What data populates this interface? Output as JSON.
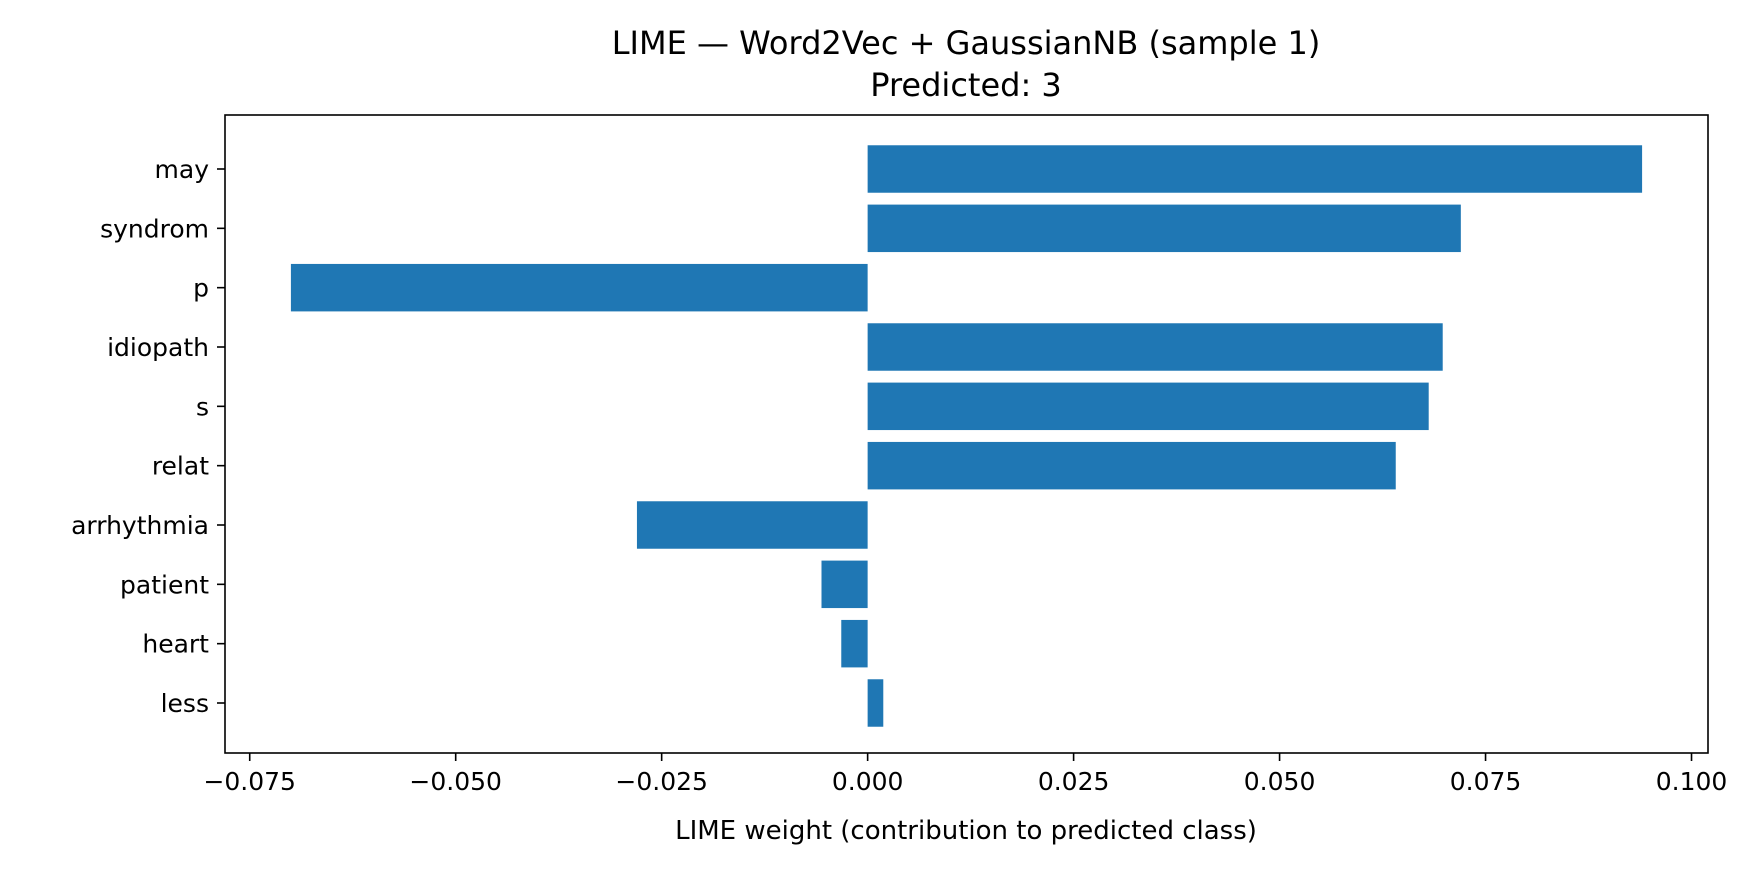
{
  "chart_data": {
    "type": "bar",
    "orientation": "horizontal",
    "title": "LIME — Word2Vec + GaussianNB (sample 1)",
    "subtitle": "Predicted: 3",
    "xlabel": "LIME weight (contribution to predicted class)",
    "ylabel": "",
    "xlim": [
      -0.078,
      0.102
    ],
    "x_ticks": [
      -0.075,
      -0.05,
      -0.025,
      0.0,
      0.025,
      0.05,
      0.075,
      0.1
    ],
    "x_tick_labels": [
      "−0.075",
      "−0.050",
      "−0.025",
      "0.000",
      "0.025",
      "0.050",
      "0.075",
      "0.100"
    ],
    "categories": [
      "may",
      "syndrom",
      "p",
      "idiopath",
      "s",
      "relat",
      "arrhythmia",
      "patient",
      "heart",
      "less"
    ],
    "values": [
      0.094,
      0.072,
      -0.07,
      0.0698,
      0.0681,
      0.0641,
      -0.028,
      -0.0056,
      -0.0032,
      0.0019
    ],
    "bar_color": "#1f77b4",
    "grid": false,
    "legend": "none"
  }
}
